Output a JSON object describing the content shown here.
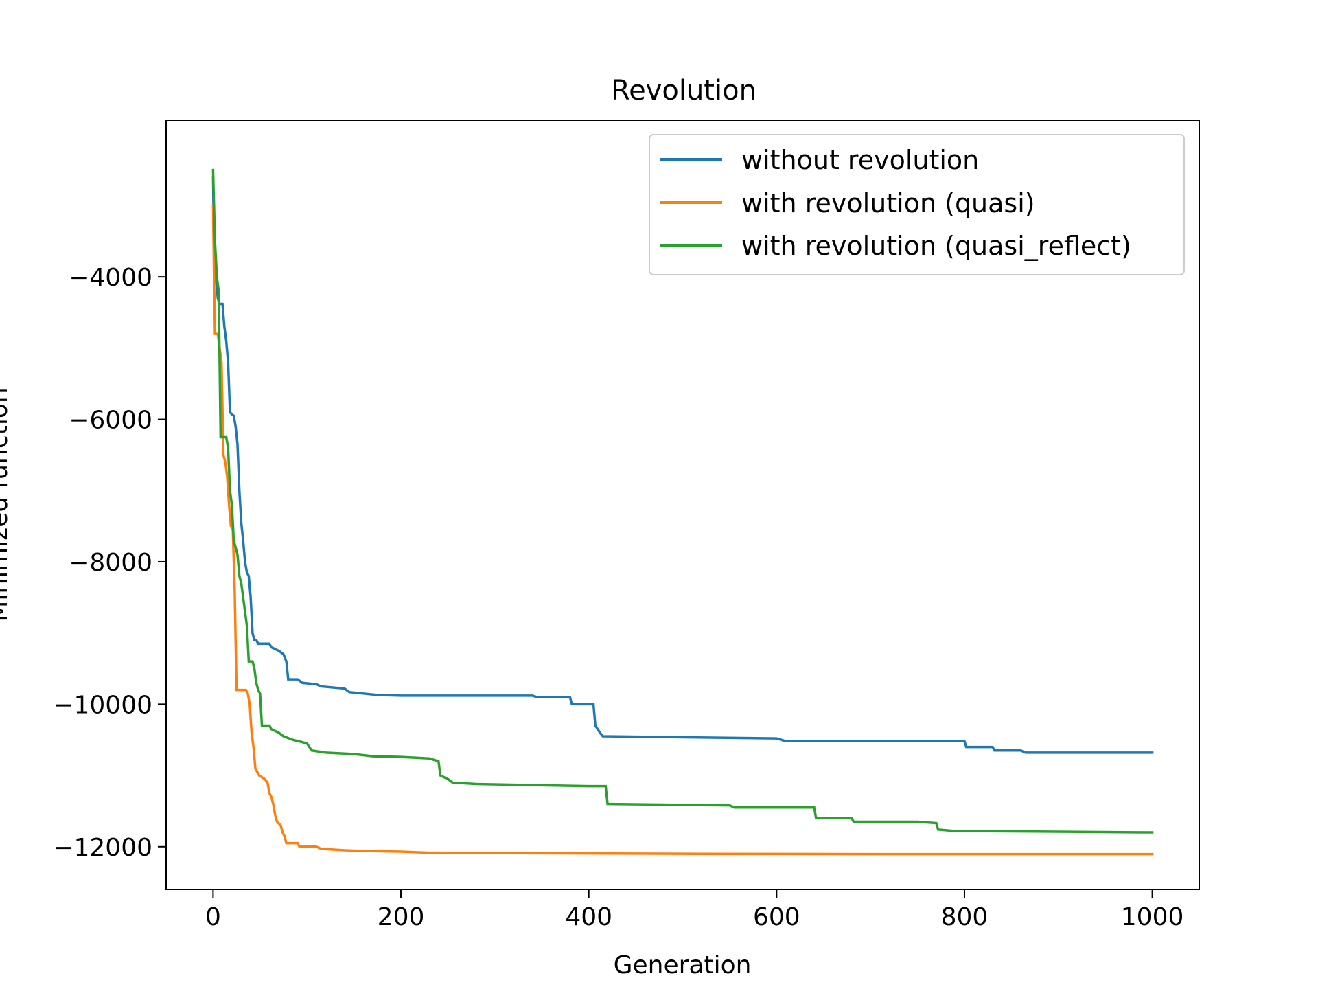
{
  "chart_data": {
    "type": "line",
    "title": "Revolution",
    "xlabel": "Generation",
    "ylabel": "Minimized function",
    "xlim": [
      -50,
      1050
    ],
    "ylim": [
      -12600,
      -1800
    ],
    "xticks": [
      0,
      200,
      400,
      600,
      800,
      1000
    ],
    "yticks": [
      -4000,
      -6000,
      -8000,
      -10000,
      -12000
    ],
    "xtick_labels": [
      "0",
      "200",
      "400",
      "600",
      "800",
      "1000"
    ],
    "ytick_labels": [
      "−4000",
      "−6000",
      "−8000",
      "−10000",
      "−12000"
    ],
    "grid": false,
    "legend_position": "upper right",
    "series": [
      {
        "name": "without revolution",
        "color": "#1f77b4",
        "points": [
          [
            0,
            -2600
          ],
          [
            1,
            -3600
          ],
          [
            3,
            -4000
          ],
          [
            5,
            -4300
          ],
          [
            7,
            -4380
          ],
          [
            10,
            -4380
          ],
          [
            12,
            -4700
          ],
          [
            14,
            -4900
          ],
          [
            16,
            -5200
          ],
          [
            18,
            -5900
          ],
          [
            20,
            -5930
          ],
          [
            22,
            -5950
          ],
          [
            24,
            -6100
          ],
          [
            26,
            -6350
          ],
          [
            28,
            -7000
          ],
          [
            30,
            -7450
          ],
          [
            32,
            -7700
          ],
          [
            34,
            -8000
          ],
          [
            36,
            -8150
          ],
          [
            38,
            -8200
          ],
          [
            40,
            -8500
          ],
          [
            42,
            -9000
          ],
          [
            44,
            -9100
          ],
          [
            46,
            -9100
          ],
          [
            48,
            -9150
          ],
          [
            60,
            -9150
          ],
          [
            62,
            -9200
          ],
          [
            70,
            -9250
          ],
          [
            75,
            -9300
          ],
          [
            78,
            -9400
          ],
          [
            80,
            -9650
          ],
          [
            90,
            -9650
          ],
          [
            95,
            -9700
          ],
          [
            110,
            -9720
          ],
          [
            115,
            -9750
          ],
          [
            140,
            -9780
          ],
          [
            145,
            -9830
          ],
          [
            160,
            -9850
          ],
          [
            175,
            -9870
          ],
          [
            200,
            -9880
          ],
          [
            340,
            -9880
          ],
          [
            345,
            -9900
          ],
          [
            380,
            -9900
          ],
          [
            382,
            -10000
          ],
          [
            405,
            -10000
          ],
          [
            407,
            -10300
          ],
          [
            412,
            -10400
          ],
          [
            415,
            -10450
          ],
          [
            600,
            -10480
          ],
          [
            610,
            -10520
          ],
          [
            800,
            -10520
          ],
          [
            802,
            -10600
          ],
          [
            830,
            -10600
          ],
          [
            832,
            -10650
          ],
          [
            860,
            -10650
          ],
          [
            865,
            -10680
          ],
          [
            1000,
            -10680
          ]
        ]
      },
      {
        "name": "with revolution (quasi)",
        "color": "#ff7f0e",
        "points": [
          [
            0,
            -3000
          ],
          [
            1,
            -4000
          ],
          [
            2,
            -4800
          ],
          [
            5,
            -4800
          ],
          [
            7,
            -5000
          ],
          [
            9,
            -5200
          ],
          [
            11,
            -6500
          ],
          [
            13,
            -6600
          ],
          [
            15,
            -6800
          ],
          [
            17,
            -7200
          ],
          [
            19,
            -7500
          ],
          [
            21,
            -7550
          ],
          [
            23,
            -8400
          ],
          [
            25,
            -9800
          ],
          [
            35,
            -9800
          ],
          [
            37,
            -9850
          ],
          [
            39,
            -10000
          ],
          [
            41,
            -10400
          ],
          [
            43,
            -10600
          ],
          [
            45,
            -10900
          ],
          [
            47,
            -10950
          ],
          [
            49,
            -11000
          ],
          [
            55,
            -11050
          ],
          [
            58,
            -11100
          ],
          [
            60,
            -11250
          ],
          [
            62,
            -11300
          ],
          [
            64,
            -11400
          ],
          [
            66,
            -11550
          ],
          [
            68,
            -11650
          ],
          [
            72,
            -11700
          ],
          [
            74,
            -11800
          ],
          [
            76,
            -11850
          ],
          [
            78,
            -11950
          ],
          [
            90,
            -11950
          ],
          [
            92,
            -12000
          ],
          [
            110,
            -12000
          ],
          [
            115,
            -12030
          ],
          [
            140,
            -12050
          ],
          [
            160,
            -12060
          ],
          [
            200,
            -12070
          ],
          [
            230,
            -12085
          ],
          [
            300,
            -12090
          ],
          [
            400,
            -12095
          ],
          [
            500,
            -12100
          ],
          [
            700,
            -12105
          ],
          [
            1000,
            -12105
          ]
        ]
      },
      {
        "name": "with revolution (quasi_reflect)",
        "color": "#2ca02c",
        "points": [
          [
            0,
            -2500
          ],
          [
            2,
            -3500
          ],
          [
            4,
            -4000
          ],
          [
            6,
            -4200
          ],
          [
            8,
            -6250
          ],
          [
            14,
            -6250
          ],
          [
            16,
            -6400
          ],
          [
            18,
            -7000
          ],
          [
            20,
            -7200
          ],
          [
            22,
            -7700
          ],
          [
            24,
            -7800
          ],
          [
            26,
            -7900
          ],
          [
            28,
            -8200
          ],
          [
            30,
            -8300
          ],
          [
            32,
            -8500
          ],
          [
            34,
            -8700
          ],
          [
            36,
            -8900
          ],
          [
            38,
            -9400
          ],
          [
            42,
            -9400
          ],
          [
            44,
            -9500
          ],
          [
            46,
            -9700
          ],
          [
            48,
            -9800
          ],
          [
            50,
            -9850
          ],
          [
            52,
            -10300
          ],
          [
            60,
            -10300
          ],
          [
            62,
            -10350
          ],
          [
            70,
            -10400
          ],
          [
            75,
            -10450
          ],
          [
            85,
            -10500
          ],
          [
            100,
            -10550
          ],
          [
            105,
            -10650
          ],
          [
            120,
            -10680
          ],
          [
            150,
            -10700
          ],
          [
            170,
            -10730
          ],
          [
            200,
            -10740
          ],
          [
            230,
            -10760
          ],
          [
            240,
            -10800
          ],
          [
            242,
            -11000
          ],
          [
            250,
            -11050
          ],
          [
            255,
            -11100
          ],
          [
            280,
            -11120
          ],
          [
            400,
            -11150
          ],
          [
            418,
            -11150
          ],
          [
            420,
            -11400
          ],
          [
            550,
            -11420
          ],
          [
            555,
            -11450
          ],
          [
            640,
            -11450
          ],
          [
            642,
            -11600
          ],
          [
            680,
            -11600
          ],
          [
            682,
            -11650
          ],
          [
            750,
            -11650
          ],
          [
            770,
            -11670
          ],
          [
            772,
            -11760
          ],
          [
            790,
            -11780
          ],
          [
            1000,
            -11800
          ]
        ]
      }
    ]
  }
}
